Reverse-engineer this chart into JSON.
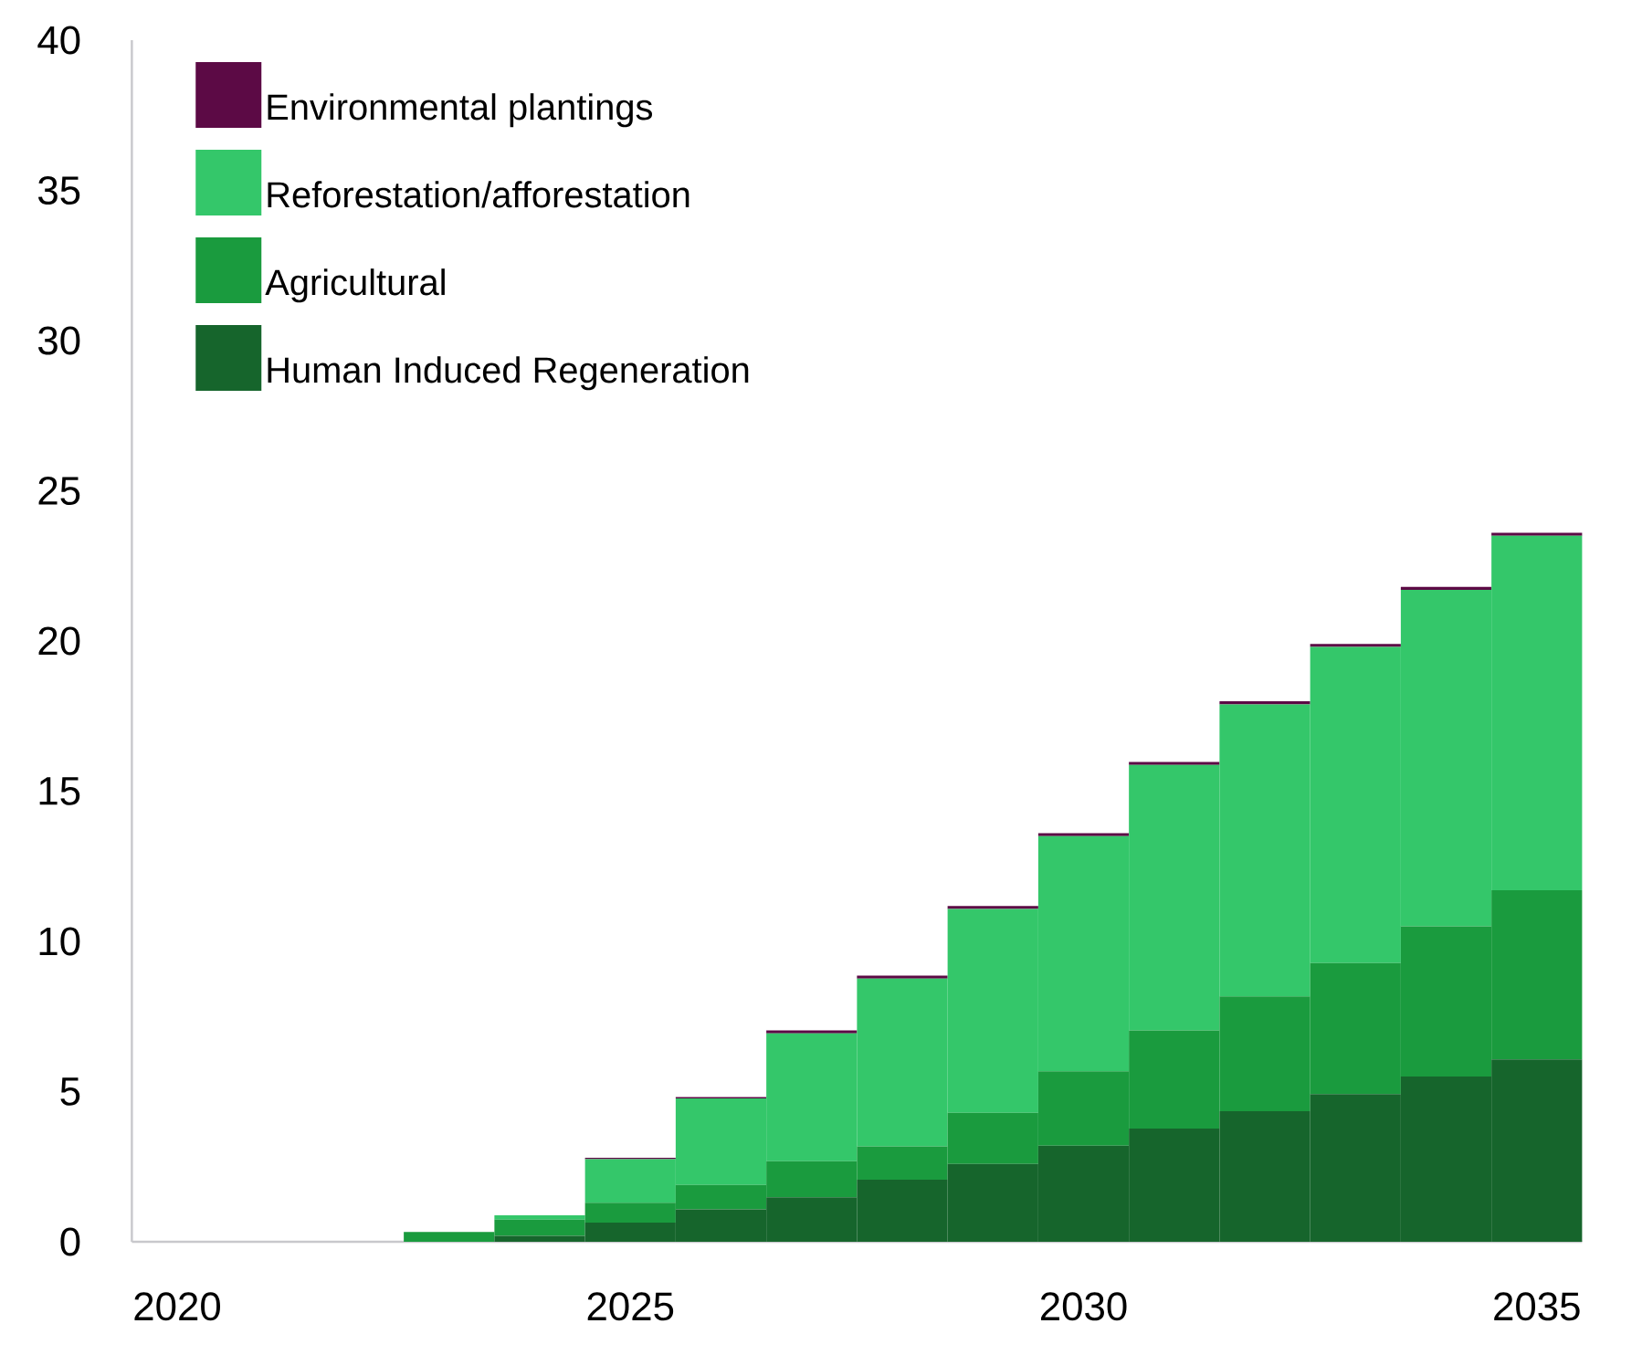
{
  "chart_data": {
    "type": "bar",
    "stacked": true,
    "categories": [
      "2020",
      null,
      null,
      null,
      null,
      "2025",
      null,
      null,
      null,
      null,
      "2030",
      null,
      null,
      null,
      null,
      "2035"
    ],
    "series": [
      {
        "name": "Human Induced Regeneration",
        "color": "#16652c",
        "values": [
          0,
          0,
          0,
          0,
          0.2,
          0.64,
          1.08,
          1.48,
          2.07,
          2.59,
          3.2,
          3.77,
          4.35,
          4.92,
          5.5,
          6.07
        ]
      },
      {
        "name": "Agricultural",
        "color": "#1a9b3e",
        "values": [
          0,
          0,
          0,
          0.33,
          0.54,
          0.66,
          0.81,
          1.2,
          1.11,
          1.7,
          2.48,
          3.27,
          3.82,
          4.36,
          5.0,
          5.63
        ]
      },
      {
        "name": "Reforestation/afforestation",
        "color": "#34c76a",
        "values": [
          0,
          0,
          0,
          0,
          0.14,
          1.45,
          2.88,
          4.26,
          5.58,
          6.79,
          7.82,
          8.83,
          9.72,
          10.52,
          11.2,
          11.8
        ]
      },
      {
        "name": "Environmental plantings",
        "color": "#5c0a45",
        "values": [
          0,
          0,
          0,
          0,
          0,
          0.05,
          0.05,
          0.1,
          0.1,
          0.1,
          0.1,
          0.1,
          0.1,
          0.1,
          0.1,
          0.1
        ]
      }
    ],
    "ylim": [
      0,
      40
    ],
    "yticks": [
      0,
      5,
      10,
      15,
      20,
      25,
      30,
      35,
      40
    ],
    "legend": "top left"
  }
}
